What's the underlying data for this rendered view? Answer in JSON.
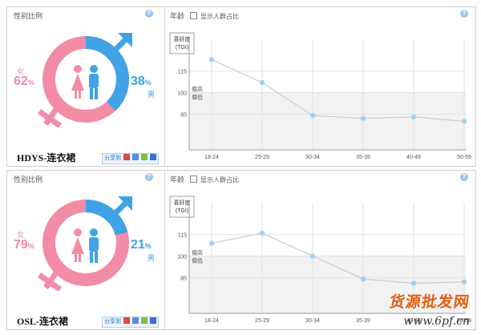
{
  "panels": [
    {
      "gender_title": "性别比例",
      "female_label": "女",
      "male_label": "男",
      "female_pct": "62",
      "male_pct": "38",
      "pct_unit": "%",
      "female_share": 62,
      "product_label": "HDYS-连衣裙",
      "share_label": "分享到",
      "age_title": "年龄",
      "show_crowd_label": "显示人群占比"
    },
    {
      "gender_title": "性别比例",
      "female_label": "女",
      "male_label": "男",
      "female_pct": "79",
      "male_pct": "21",
      "pct_unit": "%",
      "female_share": 79,
      "product_label": "OSL-连衣裙",
      "share_label": "分享到",
      "age_title": "年龄",
      "show_crowd_label": "显示人群占比"
    }
  ],
  "colors": {
    "female": "#f28ca6",
    "male": "#3fa3e6",
    "line": "#cccccc",
    "point": "#9fd3f5",
    "band": "#f2f2f2"
  },
  "icons": {
    "help": "help-icon",
    "checkbox": "checkbox-icon",
    "share": "share-icons"
  },
  "chart_data": [
    {
      "type": "line",
      "ylabel": "喜好度",
      "ylabel_sub": "(TGI)",
      "categories": [
        "18-24",
        "25-29",
        "30-34",
        "35-39",
        "40-49",
        "50-59"
      ],
      "series": [
        {
          "values": [
            123,
            107,
            84,
            82,
            83,
            80
          ]
        }
      ],
      "y_ticks": [
        85,
        100,
        115
      ],
      "ylim": [
        60,
        135
      ],
      "reference": {
        "value": 100,
        "above_label": "偏高",
        "below_label": "偏低"
      },
      "grid": true
    },
    {
      "type": "line",
      "ylabel": "喜好度",
      "ylabel_sub": "(TGI)",
      "categories": [
        "18-24",
        "25-29",
        "30-34",
        "35-39",
        "40-49",
        "50-59"
      ],
      "series": [
        {
          "values": [
            109,
            116,
            100,
            84,
            81,
            82
          ]
        }
      ],
      "y_ticks": [
        85,
        100,
        115
      ],
      "ylim": [
        60,
        135
      ],
      "reference": {
        "value": 100,
        "above_label": "偏高",
        "below_label": "偏低"
      },
      "grid": true
    }
  ],
  "watermark": {
    "cn": "货源批发网",
    "url": "www.6pf.cn"
  }
}
